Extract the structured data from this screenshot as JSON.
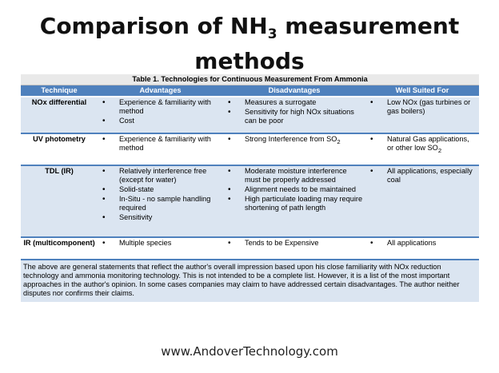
{
  "title": {
    "line1_pre": "Comparison of NH",
    "line1_sub": "3",
    "line1_post": " measurement",
    "line2": "methods"
  },
  "table": {
    "caption": "Table 1.  Technologies for Continuous Measurement From Ammonia",
    "headers": [
      "Technique",
      "Advantages",
      "Disadvantages",
      "Well Suited For"
    ],
    "rows": [
      {
        "technique": "NOx differential",
        "advantages": [
          "Experience & familiarity with method",
          "Cost"
        ],
        "disadvantages": [
          "Measures a surrogate",
          "Sensitivity for high NOx situations can be poor"
        ],
        "suited": [
          "Low NOx (gas turbines or gas boilers)"
        ]
      },
      {
        "technique": "UV photometry",
        "advantages": [
          "Experience & familiarity with method"
        ],
        "disadvantages_pre": "Strong Interference from SO",
        "disadvantages_sub": "2",
        "suited_pre": "Natural Gas applications, or other low SO",
        "suited_sub": "2"
      },
      {
        "technique": "TDL (IR)",
        "advantages": [
          "Relatively interference free (except for water)",
          "Solid-state",
          "In-Situ - no sample handling required",
          "Sensitivity"
        ],
        "disadvantages": [
          "Moderate moisture interference must be properly addressed",
          "Alignment needs to be maintained",
          "High particulate loading may require shortening of path length"
        ],
        "suited": [
          "All applications, especially coal"
        ]
      },
      {
        "technique": "IR (multicomponent)",
        "advantages": [
          "Multiple species"
        ],
        "disadvantages": [
          "Tends to be Expensive"
        ],
        "suited": [
          "All applications"
        ]
      }
    ],
    "note": "The above are general statements that reflect the author's overall impression based upon his close familiarity with NOx reduction technology and ammonia monitoring technology.  This is not intended to be a complete list.  However, it is a list of the most important approaches in the author's opinion.  In some cases companies may claim to have addressed certain disadvantages.  The author neither disputes nor confirms their claims."
  },
  "footer": "www.AndoverTechnology.com"
}
